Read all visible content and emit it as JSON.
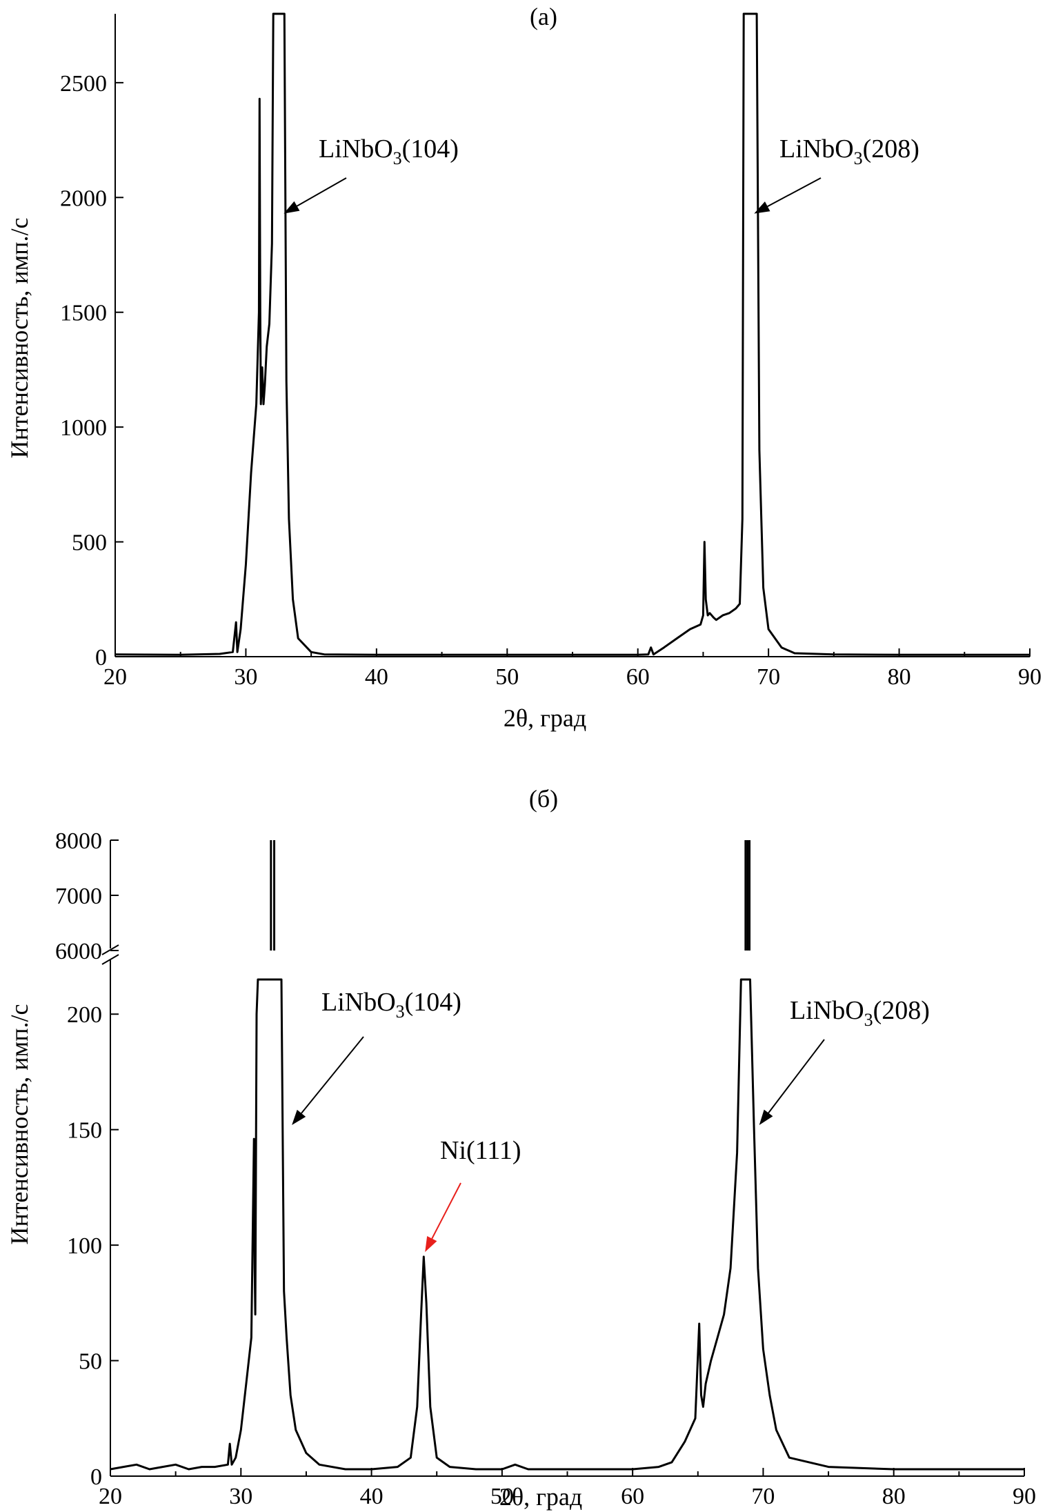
{
  "chart_data": [
    {
      "type": "line",
      "panel_label": "(а)",
      "xlabel": "2θ, град",
      "ylabel": "Интенсивность, имп./с",
      "xlim": [
        20,
        90
      ],
      "ylim": [
        0,
        2800
      ],
      "x_ticks": [
        20,
        30,
        40,
        50,
        60,
        70,
        80,
        90
      ],
      "y_ticks": [
        0,
        500,
        1000,
        1500,
        2000,
        2500
      ],
      "grid": false,
      "series": [
        {
          "x": [
            20,
            25,
            28,
            29,
            29.25,
            29.35,
            29.45,
            29.6,
            30,
            30.4,
            30.8,
            31.0,
            31.05,
            31.1,
            31.15,
            31.25,
            31.35,
            31.45,
            31.6,
            31.8,
            32.0,
            32.1,
            32.2,
            32.4,
            32.6,
            32.8,
            32.95,
            33.1,
            33.3,
            33.6,
            34,
            35,
            36,
            40,
            50,
            60,
            60.8,
            61.0,
            61.2,
            62,
            63,
            64,
            64.8,
            65.0,
            65.1,
            65.2,
            65.35,
            65.5,
            65.8,
            66,
            66.5,
            67,
            67.5,
            67.8,
            68.0,
            68.1,
            68.3,
            68.6,
            68.8,
            68.95,
            69.1,
            69.3,
            69.6,
            70,
            71,
            72,
            75,
            80,
            90
          ],
          "y": [
            10,
            8,
            12,
            20,
            150,
            20,
            60,
            120,
            400,
            800,
            1100,
            1500,
            2430,
            1500,
            1100,
            1260,
            1100,
            1180,
            1350,
            1450,
            1800,
            2800,
            2800,
            2800,
            2800,
            2800,
            2800,
            1200,
            600,
            250,
            80,
            20,
            10,
            8,
            8,
            8,
            10,
            40,
            10,
            40,
            80,
            120,
            140,
            180,
            500,
            250,
            180,
            190,
            170,
            160,
            180,
            190,
            210,
            230,
            600,
            2800,
            2800,
            2800,
            2800,
            2800,
            2800,
            900,
            300,
            120,
            40,
            15,
            10,
            8,
            8
          ]
        }
      ],
      "annotations": [
        {
          "text": "LiNbO",
          "sub": "3",
          "suffix": "(104)",
          "x": 32.9,
          "y": 1930
        },
        {
          "text": "LiNbO",
          "sub": "3",
          "suffix": "(208)",
          "x": 68.9,
          "y": 1930
        }
      ]
    },
    {
      "type": "line",
      "panel_label": "(б)",
      "xlabel": "2θ, град",
      "ylabel": "Интенсивность, имп./с",
      "xlim": [
        20,
        90
      ],
      "ylim_lower": [
        0,
        215
      ],
      "ylim_upper": [
        6000,
        8000
      ],
      "broken_axis": true,
      "x_ticks": [
        20,
        30,
        40,
        50,
        60,
        70,
        80,
        90
      ],
      "y_ticks_lower": [
        0,
        50,
        100,
        150,
        200
      ],
      "y_ticks_upper": [
        6000,
        7000,
        8000
      ],
      "grid": false,
      "series": [
        {
          "x": [
            20,
            21,
            22,
            23,
            24,
            25,
            26,
            27,
            28,
            29,
            29.15,
            29.3,
            29.6,
            30,
            30.4,
            30.8,
            31.0,
            31.05,
            31.1,
            31.2,
            31.3,
            31.4,
            33.1,
            33.3,
            33.5,
            33.8,
            34.2,
            35,
            36,
            38,
            40,
            42,
            43,
            43.5,
            43.8,
            44.0,
            44.2,
            44.5,
            45,
            46,
            48,
            50,
            51,
            52,
            55,
            58,
            60,
            62,
            63,
            64,
            64.8,
            65.1,
            65.25,
            65.4,
            65.6,
            66,
            66.5,
            67,
            67.5,
            68.0,
            68.3,
            69.0,
            69.3,
            69.6,
            70,
            70.5,
            71,
            72,
            75,
            80,
            85,
            90
          ],
          "y": [
            3,
            4,
            5,
            3,
            4,
            5,
            3,
            4,
            4,
            5,
            14,
            5,
            8,
            20,
            40,
            60,
            146,
            90,
            70,
            200,
            215,
            215,
            215,
            80,
            60,
            35,
            20,
            10,
            5,
            3,
            3,
            4,
            8,
            30,
            70,
            95,
            75,
            30,
            8,
            4,
            3,
            3,
            5,
            3,
            3,
            3,
            3,
            4,
            6,
            15,
            25,
            66,
            35,
            30,
            40,
            50,
            60,
            70,
            90,
            140,
            215,
            215,
            150,
            90,
            55,
            35,
            20,
            8,
            4,
            3,
            3,
            3
          ]
        }
      ],
      "annotations": [
        {
          "text": "LiNbO",
          "sub": "3",
          "suffix": "(104)",
          "x": 33.9,
          "y": 152
        },
        {
          "text": "LiNbO",
          "sub": "3",
          "suffix": "(208)",
          "x": 69.7,
          "y": 152
        },
        {
          "text": "Ni(111)",
          "sub": "",
          "suffix": "",
          "x": 44.1,
          "y": 97,
          "color": "#e8201c"
        }
      ]
    }
  ]
}
